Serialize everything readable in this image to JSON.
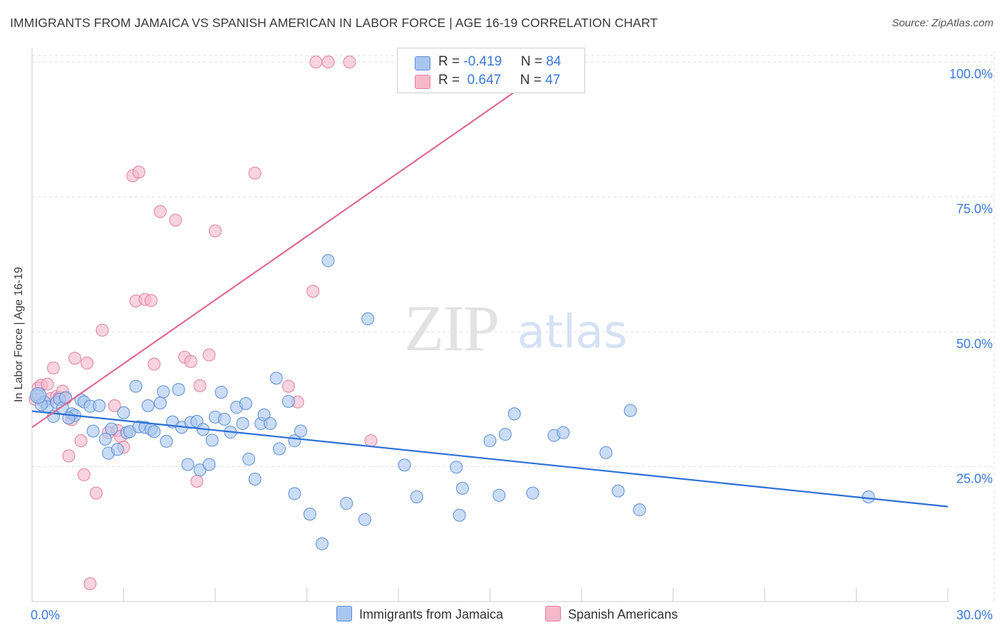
{
  "title": "IMMIGRANTS FROM JAMAICA VS SPANISH AMERICAN IN LABOR FORCE | AGE 16-19 CORRELATION CHART",
  "source": "Source: ZipAtlas.com",
  "watermark": {
    "zip": "ZIP",
    "atlas": "atlas"
  },
  "colors": {
    "blue_fill": "#a9c6f0",
    "blue_stroke": "#5b8fd6",
    "blue_line": "#2a6fd6",
    "pink_fill": "#f6b8cb",
    "pink_stroke": "#e07fa0",
    "pink_line": "#e06a92",
    "axis_text": "#3b78d8",
    "grid": "#dddddd"
  },
  "legend": {
    "rows": [
      {
        "r_label": "R = ",
        "r_value": "-0.419",
        "n_label": "N = ",
        "n_value": "84",
        "color": "#a9c6f0",
        "border": "#5b8fd6"
      },
      {
        "r_label": "R = ",
        "r_value": " 0.647",
        "n_label": "N = ",
        "n_value": "47",
        "color": "#f6b8cb",
        "border": "#e07fa0"
      }
    ]
  },
  "bottom_legend": [
    {
      "label": "Immigrants from Jamaica",
      "color": "#a9c6f0",
      "border": "#5b8fd6"
    },
    {
      "label": "Spanish Americans",
      "color": "#f6b8cb",
      "border": "#e07fa0"
    }
  ],
  "chart_data": {
    "type": "scatter",
    "title": "IMMIGRANTS FROM JAMAICA VS SPANISH AMERICAN IN LABOR FORCE | AGE 16-19 CORRELATION CHART",
    "xlabel": "",
    "ylabel": "In Labor Force | Age 16-19",
    "xlim": [
      0,
      30
    ],
    "ylim": [
      0,
      102
    ],
    "x_tick_labels": [
      "0.0%",
      "30.0%"
    ],
    "y_ticks": [
      25,
      50,
      75,
      100
    ],
    "y_tick_labels": [
      "25.0%",
      "50.0%",
      "75.0%",
      "100.0%"
    ],
    "grid": true,
    "legend_position": "top-center",
    "series": [
      {
        "name": "Immigrants from Jamaica",
        "R": -0.419,
        "N": 84,
        "trend": {
          "x": [
            0,
            30
          ],
          "y": [
            35.3,
            17.6
          ]
        },
        "points": [
          [
            0.2,
            38.2
          ],
          [
            0.4,
            37.0
          ],
          [
            0.5,
            36.1
          ],
          [
            0.7,
            34.3
          ],
          [
            0.8,
            36.9
          ],
          [
            0.9,
            37.5
          ],
          [
            1.0,
            35.9
          ],
          [
            1.1,
            37.8
          ],
          [
            1.3,
            34.8
          ],
          [
            1.4,
            34.5
          ],
          [
            1.6,
            37.4
          ],
          [
            1.7,
            37.0
          ],
          [
            1.9,
            36.2
          ],
          [
            2.0,
            31.6
          ],
          [
            2.2,
            36.3
          ],
          [
            2.4,
            30.1
          ],
          [
            2.5,
            27.5
          ],
          [
            2.6,
            32.0
          ],
          [
            2.8,
            28.2
          ],
          [
            3.0,
            35.0
          ],
          [
            3.1,
            31.3
          ],
          [
            3.2,
            31.5
          ],
          [
            3.4,
            39.9
          ],
          [
            3.5,
            32.4
          ],
          [
            3.7,
            32.3
          ],
          [
            3.8,
            36.3
          ],
          [
            3.9,
            31.9
          ],
          [
            4.0,
            31.5
          ],
          [
            4.2,
            36.8
          ],
          [
            4.3,
            38.9
          ],
          [
            4.4,
            29.7
          ],
          [
            4.6,
            33.3
          ],
          [
            4.8,
            39.3
          ],
          [
            4.9,
            32.3
          ],
          [
            5.1,
            25.4
          ],
          [
            5.2,
            33.2
          ],
          [
            5.4,
            33.4
          ],
          [
            5.5,
            24.4
          ],
          [
            5.6,
            31.9
          ],
          [
            5.8,
            25.4
          ],
          [
            5.9,
            29.9
          ],
          [
            6.0,
            34.2
          ],
          [
            6.2,
            38.8
          ],
          [
            6.3,
            33.8
          ],
          [
            6.5,
            31.4
          ],
          [
            6.7,
            36.0
          ],
          [
            6.9,
            33.0
          ],
          [
            7.0,
            36.7
          ],
          [
            7.1,
            26.4
          ],
          [
            7.3,
            22.7
          ],
          [
            7.5,
            33.0
          ],
          [
            7.6,
            34.6
          ],
          [
            7.8,
            33.0
          ],
          [
            8.0,
            41.4
          ],
          [
            8.1,
            28.3
          ],
          [
            8.4,
            37.1
          ],
          [
            8.6,
            29.8
          ],
          [
            8.8,
            31.6
          ],
          [
            8.6,
            20.0
          ],
          [
            9.1,
            16.2
          ],
          [
            9.5,
            10.7
          ],
          [
            9.7,
            63.2
          ],
          [
            10.3,
            18.2
          ],
          [
            10.9,
            15.2
          ],
          [
            11.0,
            52.4
          ],
          [
            12.2,
            25.3
          ],
          [
            12.6,
            19.4
          ],
          [
            13.9,
            24.9
          ],
          [
            14.0,
            16.0
          ],
          [
            14.1,
            21.0
          ],
          [
            15.0,
            29.8
          ],
          [
            15.3,
            19.7
          ],
          [
            15.5,
            31.0
          ],
          [
            15.8,
            34.8
          ],
          [
            16.4,
            20.1
          ],
          [
            17.1,
            30.8
          ],
          [
            17.4,
            31.3
          ],
          [
            18.8,
            27.6
          ],
          [
            19.2,
            20.5
          ],
          [
            19.6,
            35.4
          ],
          [
            19.9,
            17.0
          ],
          [
            27.4,
            19.4
          ],
          [
            0.3,
            36.5
          ],
          [
            1.2,
            34.0
          ]
        ]
      },
      {
        "name": "Spanish Americans",
        "R": 0.647,
        "N": 47,
        "trend": {
          "x": [
            0,
            17.6
          ],
          "y": [
            32.3,
            101.5
          ]
        },
        "points": [
          [
            0.1,
            37.5
          ],
          [
            0.2,
            39.6
          ],
          [
            0.3,
            40.1
          ],
          [
            0.5,
            40.3
          ],
          [
            0.6,
            37.6
          ],
          [
            0.7,
            43.3
          ],
          [
            0.8,
            38.0
          ],
          [
            0.9,
            37.8
          ],
          [
            1.0,
            39.0
          ],
          [
            1.1,
            37.6
          ],
          [
            1.2,
            27.0
          ],
          [
            1.3,
            33.7
          ],
          [
            1.4,
            45.1
          ],
          [
            1.6,
            29.8
          ],
          [
            1.7,
            23.5
          ],
          [
            1.8,
            44.2
          ],
          [
            2.1,
            20.1
          ],
          [
            2.3,
            50.3
          ],
          [
            2.5,
            31.3
          ],
          [
            2.7,
            36.3
          ],
          [
            2.8,
            31.7
          ],
          [
            2.9,
            30.6
          ],
          [
            3.0,
            28.6
          ],
          [
            3.3,
            78.9
          ],
          [
            3.4,
            55.7
          ],
          [
            3.5,
            79.6
          ],
          [
            3.7,
            56.0
          ],
          [
            3.9,
            55.8
          ],
          [
            4.0,
            44.0
          ],
          [
            4.2,
            72.3
          ],
          [
            4.7,
            70.7
          ],
          [
            5.0,
            45.3
          ],
          [
            5.2,
            44.5
          ],
          [
            5.4,
            22.3
          ],
          [
            5.5,
            40.0
          ],
          [
            5.8,
            45.7
          ],
          [
            6.0,
            68.7
          ],
          [
            7.3,
            79.4
          ],
          [
            8.4,
            39.9
          ],
          [
            8.7,
            37.0
          ],
          [
            9.2,
            57.5
          ],
          [
            9.3,
            100.0
          ],
          [
            9.7,
            100.0
          ],
          [
            10.4,
            100.0
          ],
          [
            11.1,
            29.8
          ],
          [
            17.6,
            100.0
          ],
          [
            1.9,
            3.3
          ]
        ]
      }
    ]
  }
}
